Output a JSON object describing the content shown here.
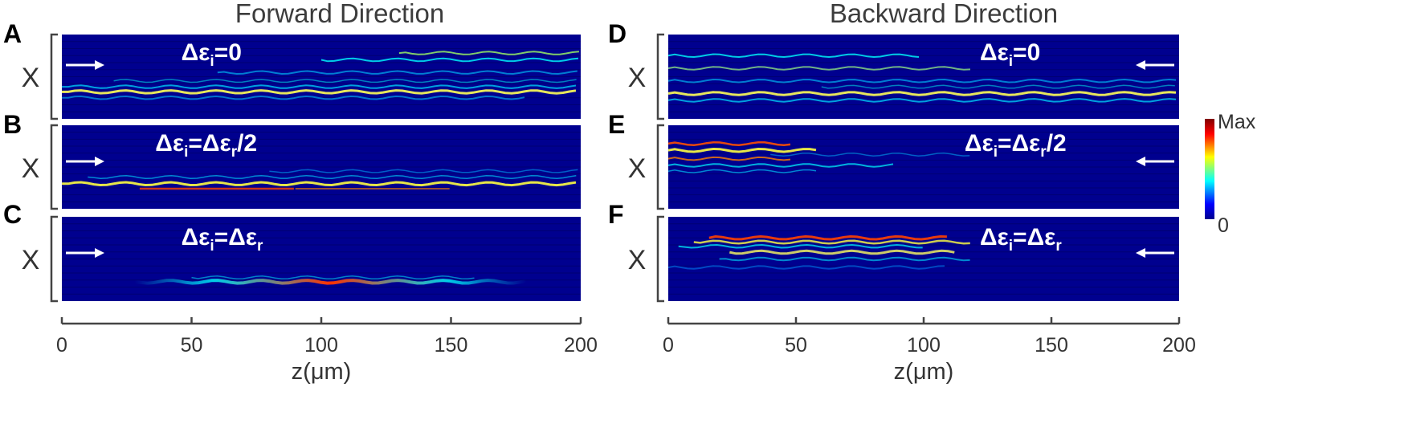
{
  "titles": {
    "left": "Forward Direction",
    "right": "Backward Direction"
  },
  "y_label": "X",
  "x_label": "z(μm)",
  "colorbar": {
    "max_label": "Max",
    "min_label": "0",
    "colors": [
      "#00008f",
      "#0000ff",
      "#00ffff",
      "#ffff00",
      "#ff0000",
      "#800000"
    ]
  },
  "arrow_char": "→",
  "chart_data": [
    {
      "type": "heatmap",
      "panel": "A",
      "direction": "forward",
      "xlim": [
        0,
        200
      ],
      "x_ticks": [
        0,
        50,
        100,
        150,
        200
      ],
      "annotation": "Δε_i=0",
      "ann_parts": {
        "a": "Δε",
        "asub": "i",
        "b": "=0",
        "bsub": "",
        "c": ""
      }
    },
    {
      "type": "heatmap",
      "panel": "B",
      "direction": "forward",
      "xlim": [
        0,
        200
      ],
      "x_ticks": [
        0,
        50,
        100,
        150,
        200
      ],
      "annotation": "Δε_i=Δε_r/2",
      "ann_parts": {
        "a": "Δε",
        "asub": "i",
        "b": "=Δε",
        "bsub": "r",
        "c": "/2"
      }
    },
    {
      "type": "heatmap",
      "panel": "C",
      "direction": "forward",
      "xlim": [
        0,
        200
      ],
      "x_ticks": [
        0,
        50,
        100,
        150,
        200
      ],
      "annotation": "Δε_i=Δε_r",
      "ann_parts": {
        "a": "Δε",
        "asub": "i",
        "b": "=Δε",
        "bsub": "r",
        "c": ""
      }
    },
    {
      "type": "heatmap",
      "panel": "D",
      "direction": "backward",
      "xlim": [
        0,
        200
      ],
      "x_ticks": [
        0,
        50,
        100,
        150,
        200
      ],
      "annotation": "Δε_i=0",
      "ann_parts": {
        "a": "Δε",
        "asub": "i",
        "b": "=0",
        "bsub": "",
        "c": ""
      }
    },
    {
      "type": "heatmap",
      "panel": "E",
      "direction": "backward",
      "xlim": [
        0,
        200
      ],
      "x_ticks": [
        0,
        50,
        100,
        150,
        200
      ],
      "annotation": "Δε_i=Δε_r/2",
      "ann_parts": {
        "a": "Δε",
        "asub": "i",
        "b": "=Δε",
        "bsub": "r",
        "c": "/2"
      }
    },
    {
      "type": "heatmap",
      "panel": "F",
      "direction": "backward",
      "xlim": [
        0,
        200
      ],
      "x_ticks": [
        0,
        50,
        100,
        150,
        200
      ],
      "annotation": "Δε_i=Δε_r",
      "ann_parts": {
        "a": "Δε",
        "asub": "i",
        "b": "=Δε",
        "bsub": "r",
        "c": ""
      }
    }
  ]
}
